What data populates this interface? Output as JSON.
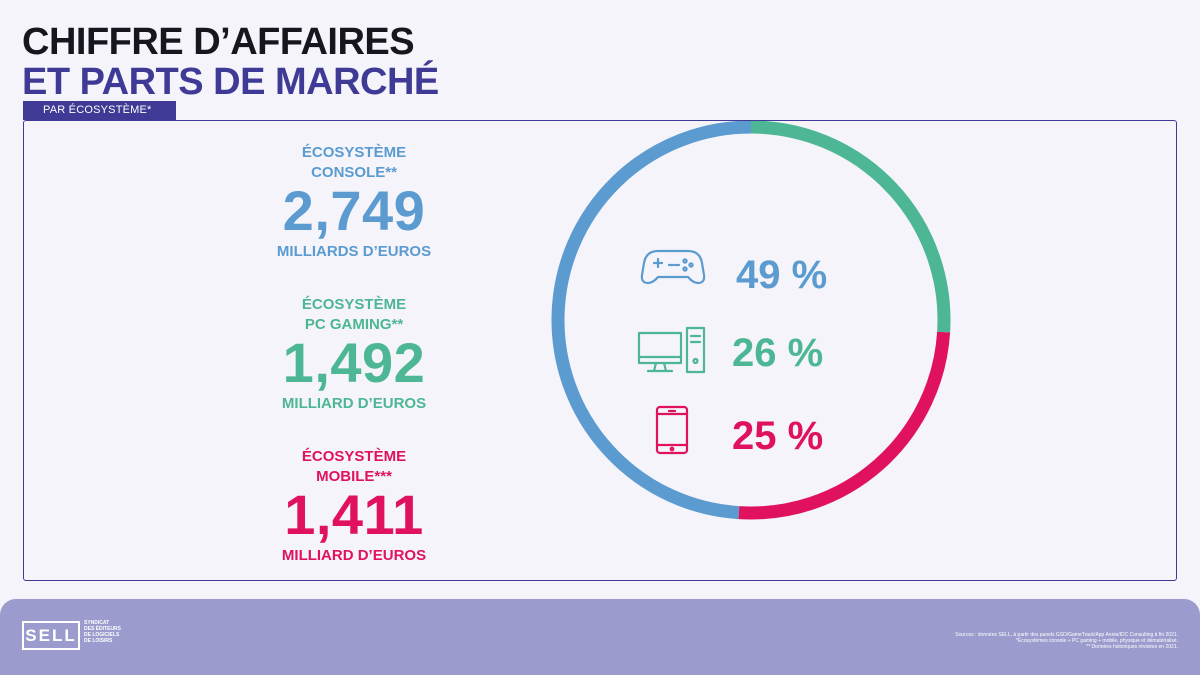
{
  "header": {
    "title_line1": "CHIFFRE D’AFFAIRES",
    "title_line2": "ET PARTS DE MARCHÉ",
    "tag": "PAR ÉCOSYSTÈME*"
  },
  "ecosystems": [
    {
      "name_line1": "ÉCOSYSTÈME",
      "name_line2": "CONSOLE**",
      "value": "2,749",
      "unit": "MILLIARDS D’EUROS",
      "color": "#5b9bd0",
      "icon": "gamepad-icon"
    },
    {
      "name_line1": "ÉCOSYSTÈME",
      "name_line2": "PC GAMING**",
      "value": "1,492",
      "unit": "MILLIARD D’EUROS",
      "color": "#4db694",
      "icon": "desktop-computer-icon"
    },
    {
      "name_line1": "ÉCOSYSTÈME",
      "name_line2": "MOBILE***",
      "value": "1,411",
      "unit": "MILLIARD D’EUROS",
      "color": "#e0125f",
      "icon": "smartphone-icon"
    }
  ],
  "chart_data": {
    "type": "pie",
    "categories": [
      "Console",
      "PC Gaming",
      "Mobile"
    ],
    "values": [
      49,
      26,
      25
    ],
    "labels": [
      "49 %",
      "26 %",
      "25 %"
    ],
    "colors": [
      "#5b9bd0",
      "#4db694",
      "#e0125f"
    ]
  },
  "footer": {
    "logo_letters": "SELL",
    "logo_subtitle": [
      "SYNDICAT",
      "DES ÉDITEURS",
      "DE LOGICIELS",
      "DE LOISIRS"
    ],
    "sources": [
      "Sources : données SELL, à partir des panels GSD/GameTrack/App Annie/IDC Consulting à fin 2021.",
      "*Écosystèmes console + PC gaming + mobile, physique et dématérialisé.",
      "** Données historiques révisées en 2021."
    ],
    "background": "#9b9bcd"
  }
}
